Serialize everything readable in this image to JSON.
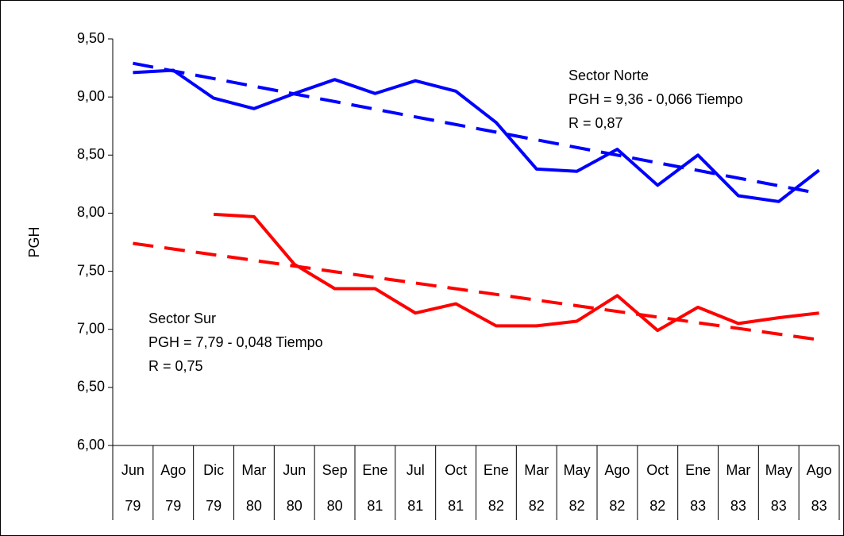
{
  "chart_data": {
    "type": "line",
    "y_label": "PGH",
    "categories": [
      [
        "Jun",
        "79"
      ],
      [
        "Ago",
        "79"
      ],
      [
        "Dic",
        "79"
      ],
      [
        "Mar",
        "80"
      ],
      [
        "Jun",
        "80"
      ],
      [
        "Sep",
        "80"
      ],
      [
        "Ene",
        "81"
      ],
      [
        "Jul",
        "81"
      ],
      [
        "Oct",
        "81"
      ],
      [
        "Ene",
        "82"
      ],
      [
        "Mar",
        "82"
      ],
      [
        "May",
        "82"
      ],
      [
        "Ago",
        "82"
      ],
      [
        "Oct",
        "82"
      ],
      [
        "Ene",
        "83"
      ],
      [
        "Mar",
        "83"
      ],
      [
        "May",
        "83"
      ],
      [
        "Ago",
        "83"
      ]
    ],
    "series": [
      {
        "color": "#0000ff",
        "values": [
          9.21,
          9.23,
          8.99,
          8.9,
          9.03,
          9.15,
          9.03,
          9.14,
          9.05,
          8.78,
          8.38,
          8.36,
          8.55,
          8.24,
          8.5,
          8.15,
          8.1,
          8.37
        ]
      },
      {
        "color": "#ff0000",
        "values": [
          null,
          null,
          7.99,
          7.97,
          7.56,
          7.35,
          7.35,
          7.14,
          7.22,
          7.03,
          7.03,
          7.07,
          7.29,
          6.99,
          7.19,
          7.05,
          7.1,
          7.14
        ]
      }
    ],
    "trendlines": [
      {
        "color": "#0000ff",
        "values": [
          9.29,
          8.17
        ]
      },
      {
        "color": "#ff0000",
        "values": [
          7.74,
          6.91
        ]
      }
    ],
    "annotations": [
      {
        "lines": [
          "Sector Norte",
          "PGH = 9,36 - 0,066 Tiempo",
          "R = 0,87"
        ]
      },
      {
        "lines": [
          "Sector Sur",
          "PGH = 7,79 - 0,048 Tiempo",
          "R = 0,75"
        ]
      }
    ],
    "ylim": [
      6.0,
      9.5
    ],
    "yticks": [
      {
        "value": 6.0,
        "label": "6,00"
      },
      {
        "value": 6.5,
        "label": "6,50"
      },
      {
        "value": 7.0,
        "label": "7,00"
      },
      {
        "value": 7.5,
        "label": "7,50"
      },
      {
        "value": 8.0,
        "label": "8,00"
      },
      {
        "value": 8.5,
        "label": "8,50"
      },
      {
        "value": 9.0,
        "label": "9,00"
      },
      {
        "value": 9.5,
        "label": "9,50"
      }
    ]
  }
}
